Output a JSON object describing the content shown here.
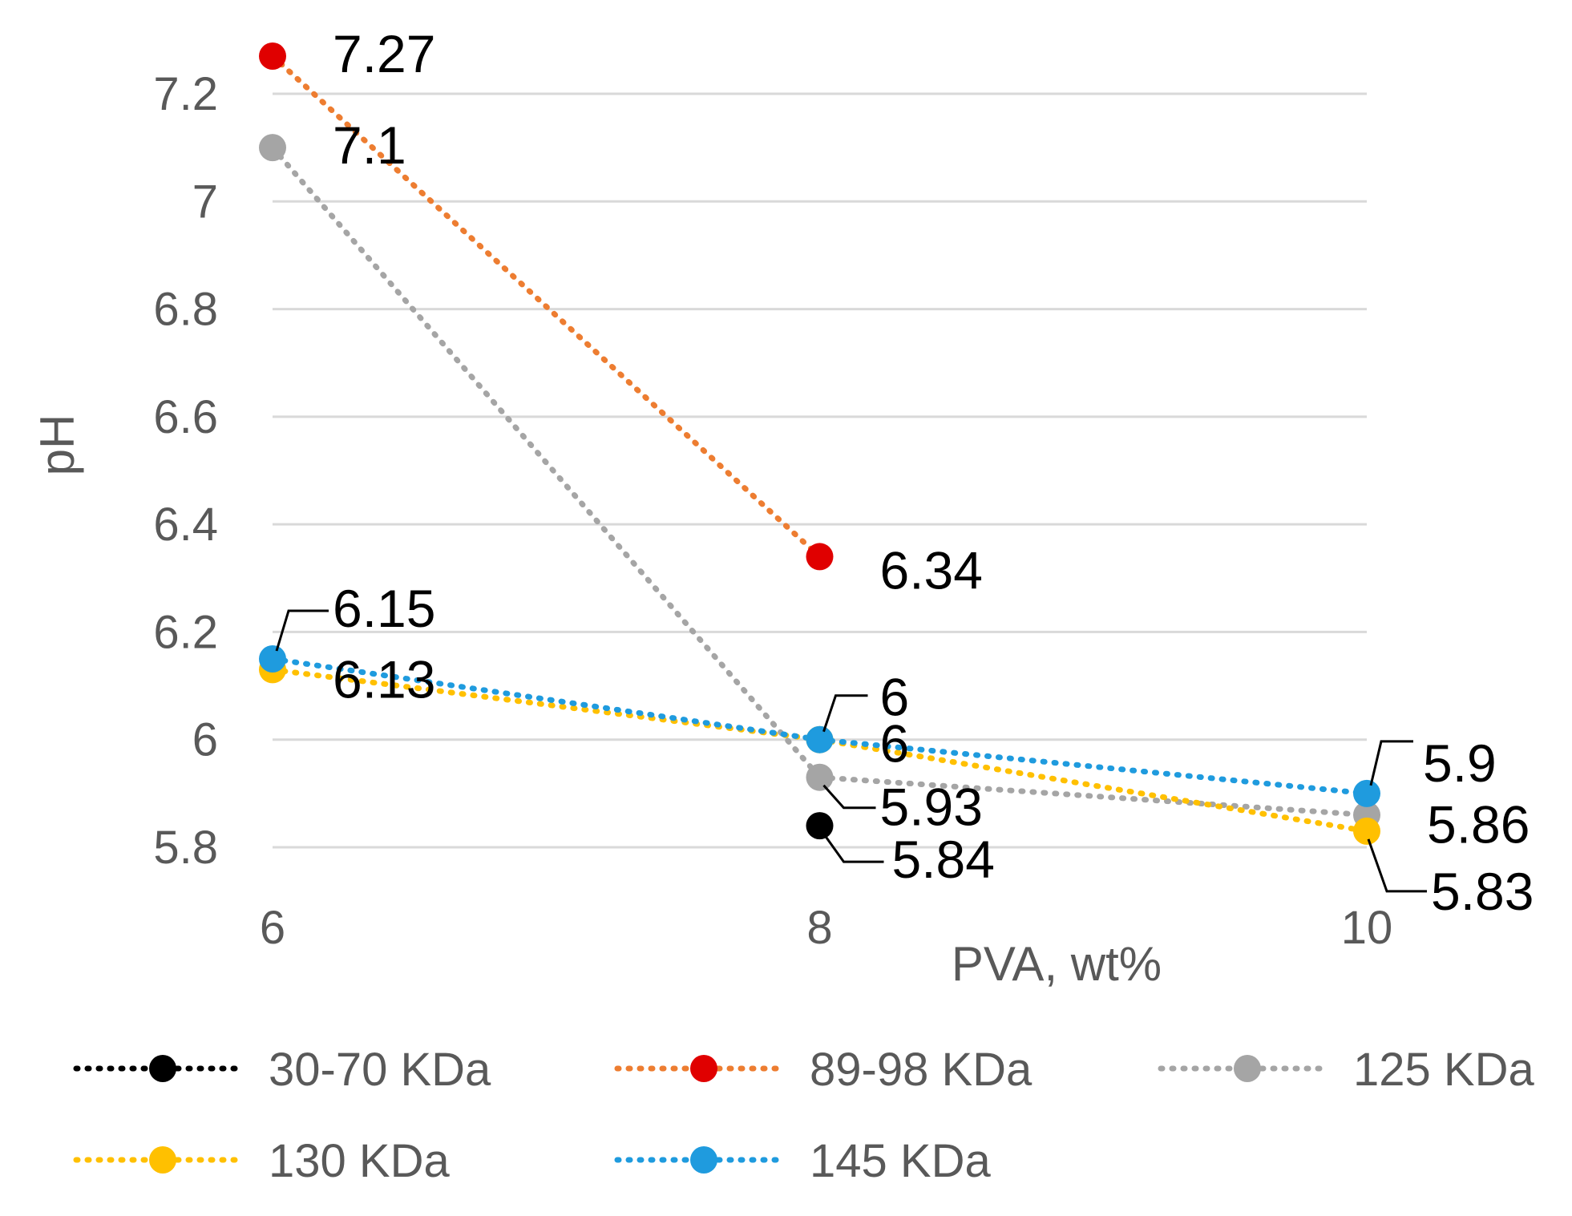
{
  "chart_data": {
    "type": "line",
    "title": "",
    "xlabel": "PVA, wt%",
    "ylabel": "pH",
    "categories": [
      "6",
      "8",
      "10"
    ],
    "ylim": [
      5.7,
      7.3
    ],
    "yticks": [
      5.8,
      6,
      6.2,
      6.4,
      6.6,
      6.8,
      7,
      7.2
    ],
    "ytick_labels": [
      "5.8",
      "6",
      "6.2",
      "6.4",
      "6.6",
      "6.8",
      "7",
      "7.2"
    ],
    "grid": true,
    "line_style": "dotted",
    "legend_position": "bottom",
    "series": [
      {
        "name": "30-70 KDa",
        "color": "#000000",
        "values": [
          null,
          5.84,
          null
        ],
        "labels": [
          null,
          "5.84",
          null
        ]
      },
      {
        "name": "89-98 KDa",
        "color": "#ed7d31",
        "marker_color": "#e00000",
        "values": [
          7.27,
          6.34,
          null
        ],
        "labels": [
          "7.27",
          "6.34",
          null
        ]
      },
      {
        "name": "125 KDa",
        "color": "#a5a5a5",
        "values": [
          7.1,
          5.93,
          5.86
        ],
        "labels": [
          "7.1",
          "5.93",
          "5.86"
        ]
      },
      {
        "name": "130 KDa",
        "color": "#ffc000",
        "values": [
          6.13,
          6,
          5.83
        ],
        "labels": [
          "6.13",
          "6",
          "5.83"
        ]
      },
      {
        "name": "145 KDa",
        "color": "#1f9bde",
        "values": [
          6.15,
          6,
          5.9
        ],
        "labels": [
          "6.15",
          "6",
          "5.9"
        ]
      }
    ]
  }
}
